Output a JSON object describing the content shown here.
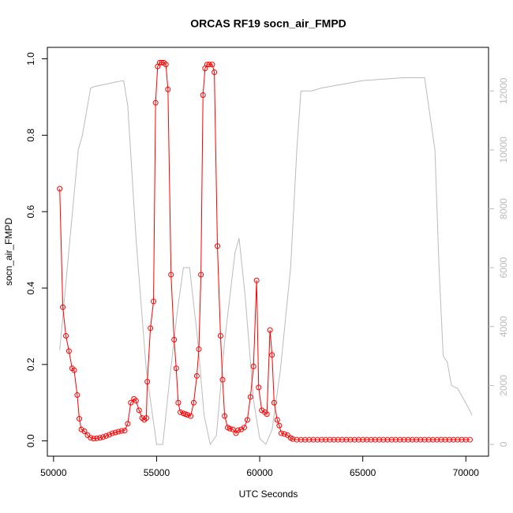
{
  "chart_data": {
    "type": "line",
    "title": "ORCAS RF19 socn_air_FMPD",
    "xlabel": "UTC Seconds",
    "ylabel": "socn_air_FMPD",
    "xlim": [
      49700,
      71100
    ],
    "xticks": [
      50000,
      55000,
      60000,
      65000,
      70000
    ],
    "ylim": [
      -0.04,
      1.03
    ],
    "yticks": [
      {
        "value": 0,
        "label": "0.0"
      },
      {
        "value": 0.2,
        "label": "0.2"
      },
      {
        "value": 0.4,
        "label": "0.4"
      },
      {
        "value": 0.6,
        "label": "0.6"
      },
      {
        "value": 0.8,
        "label": "0.8"
      },
      {
        "value": 1,
        "label": "1.0"
      }
    ],
    "y2lim": [
      -400,
      13480
    ],
    "y2ticks": [
      0,
      2000,
      4000,
      6000,
      8000,
      10000,
      12000
    ],
    "y2color": "#bbbbbb",
    "series": [
      {
        "color": "#bbbbbb",
        "axis": "y2",
        "markers": false,
        "x": [
          50300,
          50800,
          51200,
          51400,
          51800,
          52000,
          53000,
          53400,
          53600,
          54000,
          54500,
          55000,
          55300,
          55600,
          56000,
          56300,
          56600,
          57000,
          57300,
          57600,
          57900,
          58300,
          58800,
          59000,
          59300,
          59700,
          60000,
          60300,
          60600,
          61000,
          61500,
          61800,
          62000,
          62500,
          63000,
          65000,
          67000,
          68000,
          68500,
          68700,
          68900,
          69100,
          69300,
          69600,
          70000,
          70300
        ],
        "values": [
          3200,
          7000,
          10000,
          10500,
          12100,
          12150,
          12300,
          12350,
          11500,
          7000,
          2500,
          0,
          0,
          2000,
          4500,
          6000,
          6000,
          3500,
          1000,
          0,
          300,
          3500,
          6500,
          7000,
          5000,
          1500,
          200,
          0,
          500,
          2500,
          6000,
          10000,
          12000,
          12000,
          12100,
          12350,
          12450,
          12450,
          10000,
          6000,
          3000,
          2800,
          2000,
          1900,
          1400,
          1000
        ]
      },
      {
        "color": "#ff0000",
        "markers": true,
        "x": [
          50300,
          50450,
          50600,
          50750,
          50900,
          51000,
          51150,
          51250,
          51350,
          51500,
          51650,
          51800,
          51950,
          52100,
          52250,
          52400,
          52550,
          52700,
          52850,
          53000,
          53150,
          53300,
          53450,
          53600,
          53750,
          53900,
          54000,
          54150,
          54300,
          54400,
          54500,
          54550,
          54700,
          54850,
          54950,
          55050,
          55150,
          55250,
          55350,
          55450,
          55550,
          55700,
          55850,
          55950,
          56050,
          56150,
          56300,
          56400,
          56500,
          56650,
          56800,
          56950,
          57050,
          57150,
          57250,
          57350,
          57450,
          57550,
          57700,
          57800,
          57950,
          58100,
          58200,
          58300,
          58450,
          58550,
          58700,
          58850,
          58950,
          59100,
          59250,
          59400,
          59550,
          59700,
          59850,
          59950,
          60100,
          60250,
          60350,
          60500,
          60600,
          60700,
          60850,
          60950,
          61050,
          61200,
          61350,
          61500,
          61600,
          61800,
          62000,
          62200,
          62400,
          62600,
          62800,
          63000,
          63200,
          63400,
          63600,
          63800,
          64000,
          64200,
          64400,
          64600,
          64800,
          65000,
          65200,
          65400,
          65600,
          65800,
          66000,
          66200,
          66400,
          66600,
          66800,
          67000,
          67200,
          67400,
          67600,
          67800,
          68000,
          68200,
          68400,
          68600,
          68800,
          69000,
          69200,
          69400,
          69600,
          69800,
          70000,
          70200
        ],
        "values": [
          0.66,
          0.35,
          0.275,
          0.235,
          0.19,
          0.185,
          0.12,
          0.058,
          0.03,
          0.025,
          0.015,
          0.008,
          0.006,
          0.007,
          0.008,
          0.01,
          0.013,
          0.016,
          0.02,
          0.022,
          0.024,
          0.026,
          0.027,
          0.045,
          0.1,
          0.11,
          0.105,
          0.08,
          0.06,
          0.055,
          0.06,
          0.155,
          0.295,
          0.365,
          0.885,
          0.98,
          0.99,
          0.99,
          0.99,
          0.985,
          0.92,
          0.435,
          0.265,
          0.19,
          0.1,
          0.075,
          0.072,
          0.07,
          0.068,
          0.065,
          0.1,
          0.17,
          0.24,
          0.435,
          0.905,
          0.975,
          0.985,
          0.985,
          0.985,
          0.965,
          0.51,
          0.275,
          0.16,
          0.065,
          0.035,
          0.032,
          0.03,
          0.02,
          0.028,
          0.03,
          0.035,
          0.055,
          0.115,
          0.195,
          0.42,
          0.14,
          0.08,
          0.075,
          0.07,
          0.29,
          0.225,
          0.1,
          0.055,
          0.04,
          0.02,
          0.018,
          0.015,
          0.008,
          0.005,
          0.003,
          0.003,
          0.003,
          0.003,
          0.003,
          0.003,
          0.003,
          0.003,
          0.003,
          0.003,
          0.003,
          0.003,
          0.003,
          0.003,
          0.003,
          0.003,
          0.003,
          0.003,
          0.003,
          0.003,
          0.003,
          0.003,
          0.003,
          0.003,
          0.003,
          0.003,
          0.003,
          0.003,
          0.003,
          0.003,
          0.003,
          0.003,
          0.003,
          0.003,
          0.003,
          0.003,
          0.003,
          0.003,
          0.003,
          0.003,
          0.003,
          0.003,
          0.003
        ]
      }
    ]
  }
}
